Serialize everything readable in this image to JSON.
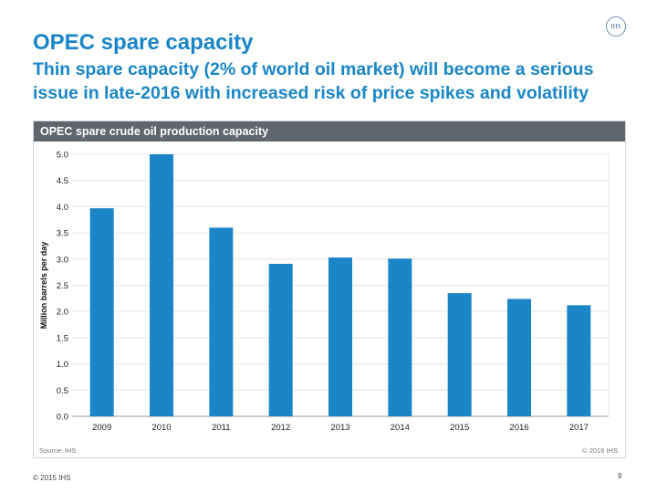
{
  "logo": {
    "text": "IHS"
  },
  "header": {
    "title": "OPEC spare capacity",
    "subtitle": "Thin spare capacity (2% of world oil market) will become a serious issue in late-2016 with increased risk of price spikes and volatility"
  },
  "panel": {
    "header": "OPEC spare crude oil production capacity",
    "source": "Source: IHS",
    "copyright": "© 2016 IHS"
  },
  "footer": {
    "copyright": "© 2015 IHS",
    "page_number": "9"
  },
  "colors": {
    "bar": "#1a86c7",
    "accent": "#1a86c7",
    "panel_header": "#5f666e"
  },
  "chart_data": {
    "type": "bar",
    "title": "OPEC spare crude oil production capacity",
    "categories": [
      "2009",
      "2010",
      "2011",
      "2012",
      "2013",
      "2014",
      "2015",
      "2016",
      "2017"
    ],
    "values": [
      3.97,
      5.0,
      3.6,
      2.91,
      3.03,
      3.01,
      2.35,
      2.24,
      2.12
    ],
    "xlabel": "",
    "ylabel": "Million barrels per day",
    "ylim": [
      0,
      5.0
    ],
    "yticks": [
      "0.0",
      "0.5",
      "1.0",
      "1.5",
      "2.0",
      "2.5",
      "3.0",
      "3.5",
      "4.0",
      "4.5",
      "5.0"
    ],
    "grid": true
  }
}
